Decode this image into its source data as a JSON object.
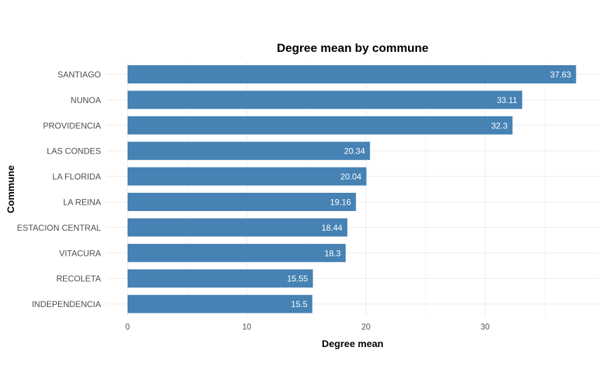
{
  "chart_data": {
    "type": "bar",
    "orientation": "horizontal",
    "title": "Degree mean by commune",
    "xlabel": "Degree mean",
    "ylabel": "Commune",
    "categories": [
      "SANTIAGO",
      "NUNOA",
      "PROVIDENCIA",
      "LAS CONDES",
      "LA FLORIDA",
      "LA REINA",
      "ESTACION CENTRAL",
      "VITACURA",
      "RECOLETA",
      "INDEPENDENCIA"
    ],
    "values": [
      37.63,
      33.11,
      32.3,
      20.34,
      20.04,
      19.16,
      18.44,
      18.3,
      15.55,
      15.5
    ],
    "value_labels": [
      "37.63",
      "33.11",
      "32.3",
      "20.34",
      "20.04",
      "19.16",
      "18.44",
      "18.3",
      "15.55",
      "15.5"
    ],
    "xticks": [
      0,
      10,
      20,
      30
    ],
    "xticks_labels": [
      "0",
      "10",
      "20",
      "30"
    ],
    "xlim": [
      0,
      39.5
    ],
    "grid": true,
    "bar_color": "#4682B4"
  }
}
